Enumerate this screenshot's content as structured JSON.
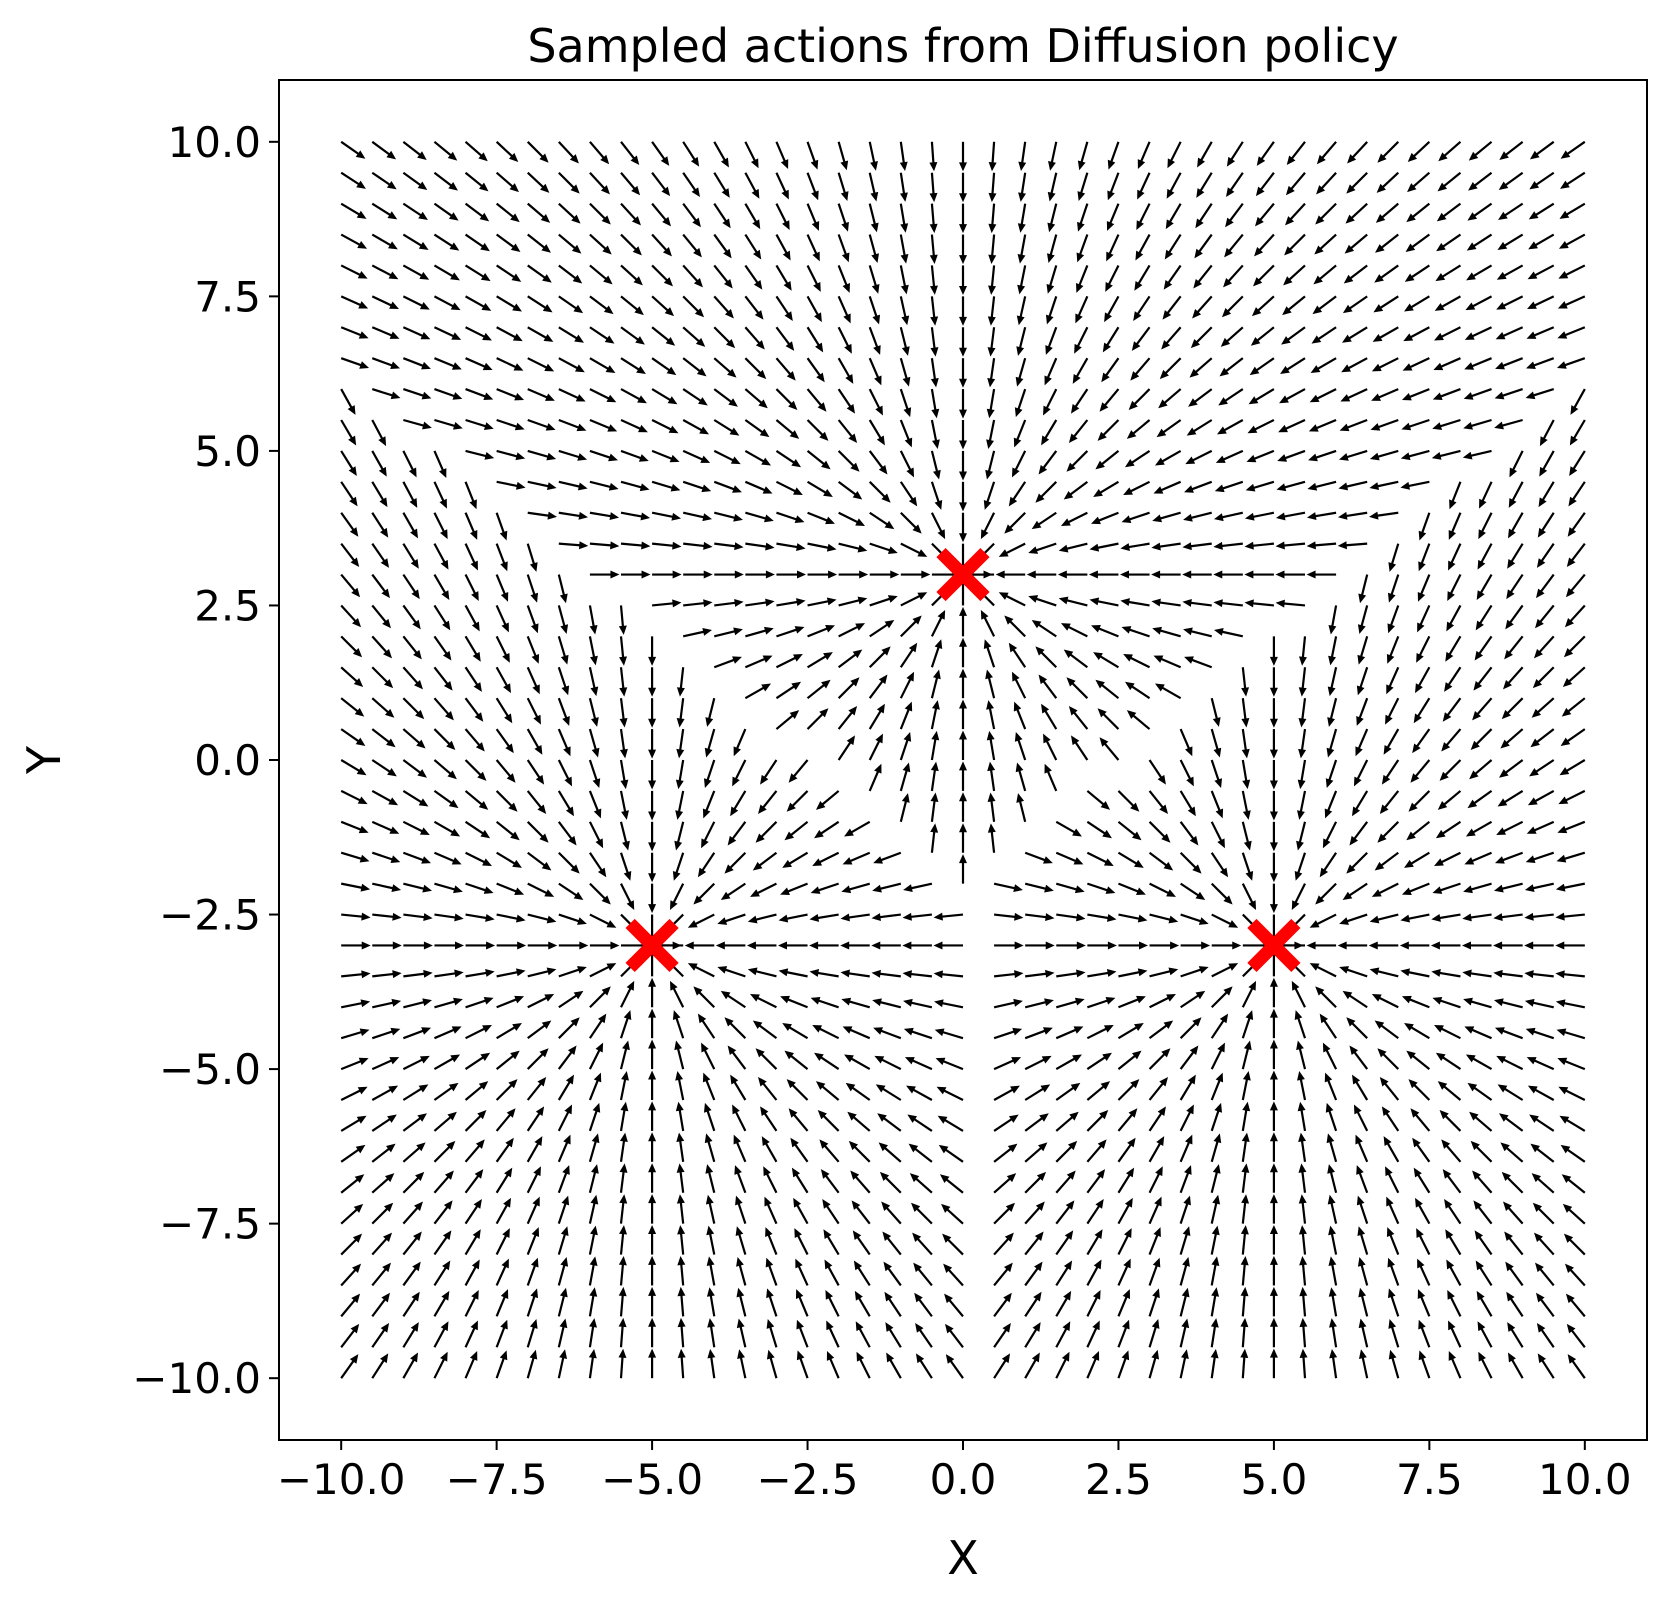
{
  "chart_data": {
    "type": "quiver",
    "title": "Sampled actions from Diffusion policy",
    "xlabel": "X",
    "ylabel": "Y",
    "xlim": [
      -11.0,
      11.0
    ],
    "ylim": [
      -11.0,
      11.0
    ],
    "xticks": [
      -10.0,
      -7.5,
      -5.0,
      -2.5,
      0.0,
      2.5,
      5.0,
      7.5,
      10.0
    ],
    "yticks": [
      -10.0,
      -7.5,
      -5.0,
      -2.5,
      0.0,
      2.5,
      5.0,
      7.5,
      10.0
    ],
    "xtick_labels": [
      "−10.0",
      "−7.5",
      "−5.0",
      "−2.5",
      "0.0",
      "2.5",
      "5.0",
      "7.5",
      "10.0"
    ],
    "ytick_labels": [
      "−10.0",
      "−7.5",
      "−5.0",
      "−2.5",
      "0.0",
      "2.5",
      "5.0",
      "7.5",
      "10.0"
    ],
    "grid": false,
    "field": {
      "x_range": [
        -10.0,
        10.0
      ],
      "y_range": [
        -10.0,
        10.0
      ],
      "samples_per_axis": 41,
      "arrow_color": "#000000",
      "description": "Unit-length action direction at each grid point, pointing toward the nearest target"
    },
    "targets": {
      "marker": "x",
      "color": "#ff0000",
      "points": [
        {
          "x": -5.0,
          "y": -3.0
        },
        {
          "x": 0.0,
          "y": 3.0
        },
        {
          "x": 5.0,
          "y": -3.0
        }
      ]
    }
  }
}
